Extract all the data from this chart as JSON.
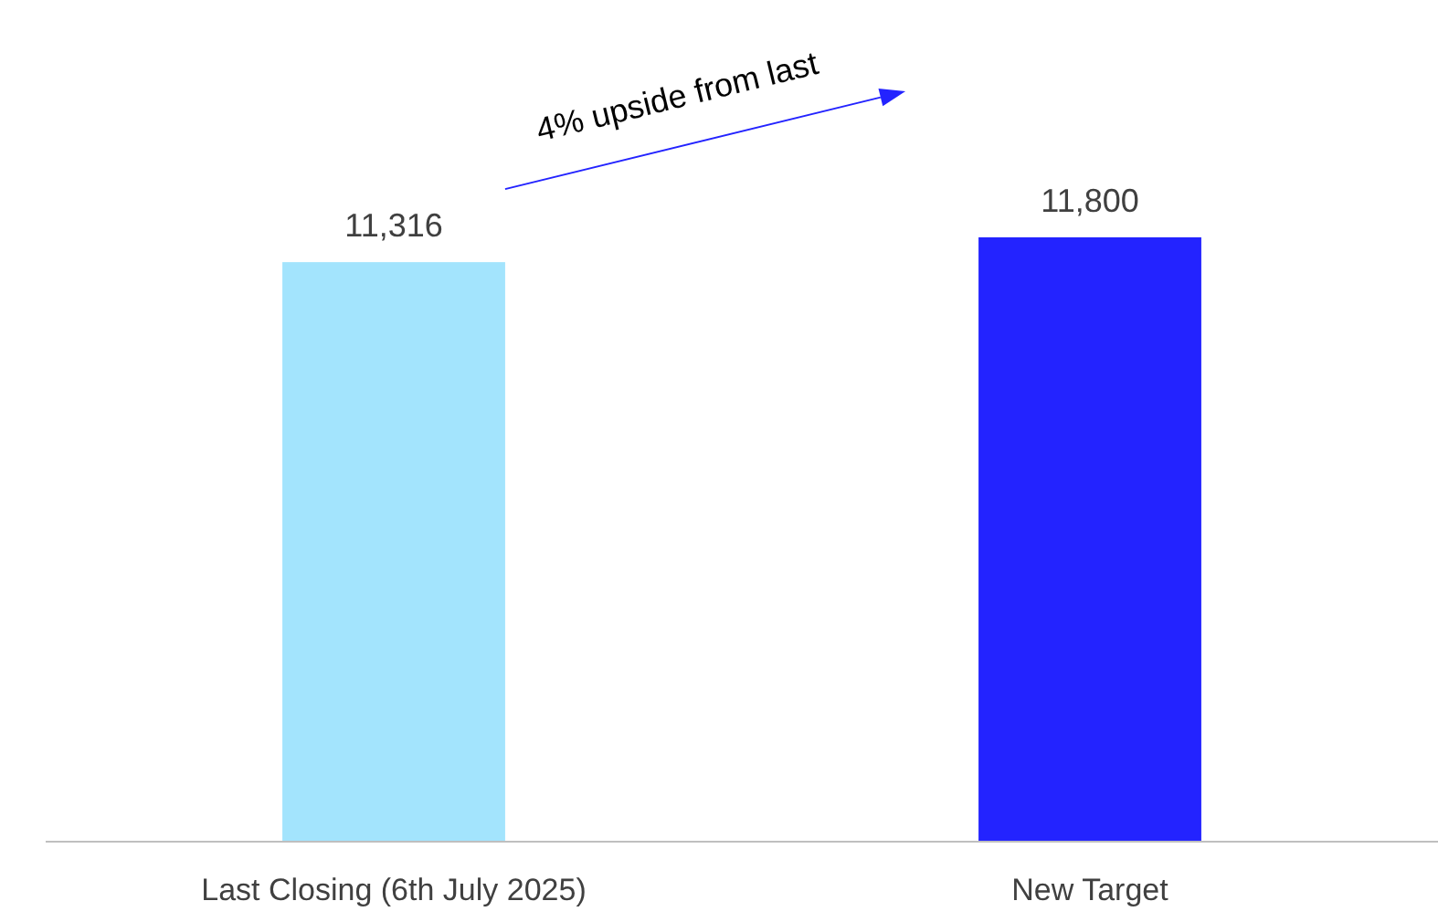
{
  "chart_data": {
    "type": "bar",
    "categories": [
      "Last Closing (6th July 2025)",
      "New Target"
    ],
    "values": [
      11316,
      11800
    ],
    "value_labels": [
      "11,316",
      "11,800"
    ],
    "colors": [
      "#a3e4fd",
      "#2323ff"
    ],
    "annotations": [
      "4% upside from last"
    ]
  }
}
